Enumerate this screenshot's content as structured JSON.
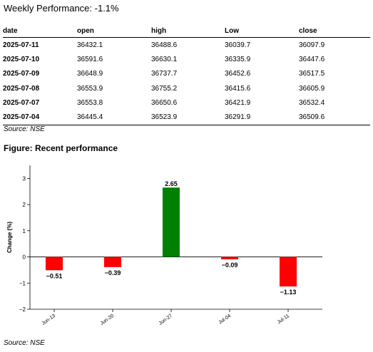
{
  "page": {
    "title": "Weekly Performance: -1.1%",
    "table_source": "Source: NSE",
    "figure_title": "Figure: Recent performance",
    "figure_source": "Source: NSE"
  },
  "table": {
    "headers": [
      "date",
      "open",
      "high",
      "Low",
      "close"
    ],
    "rows": [
      [
        "2025-07-11",
        "36432.1",
        "36488.6",
        "36039.7",
        "36097.9"
      ],
      [
        "2025-07-10",
        "36591.6",
        "36630.1",
        "36335.9",
        "36447.6"
      ],
      [
        "2025-07-09",
        "36648.9",
        "36737.7",
        "36452.6",
        "36517.5"
      ],
      [
        "2025-07-08",
        "36553.9",
        "36755.2",
        "36415.6",
        "36605.9"
      ],
      [
        "2025-07-07",
        "36553.8",
        "36650.6",
        "36421.9",
        "36532.4"
      ],
      [
        "2025-07-04",
        "36445.4",
        "36523.9",
        "36291.9",
        "36509.6"
      ]
    ]
  },
  "chart_data": {
    "type": "bar",
    "categories": [
      "Jun-13",
      "Jun-20",
      "Jun-27",
      "Jul-04",
      "Jul-11"
    ],
    "values": [
      -0.51,
      -0.39,
      2.65,
      -0.09,
      -1.13
    ],
    "value_labels": [
      "−0.51",
      "−0.39",
      "2.65",
      "−0.09",
      "−1.13"
    ],
    "ylabel": "Change (%)",
    "ylim": [
      -2,
      3.5
    ],
    "yticks": [
      -2,
      -1,
      0,
      1,
      2,
      3
    ],
    "ytick_labels": [
      "−2",
      "−1",
      "0",
      "1",
      "2",
      "3"
    ],
    "grid": false,
    "colors": {
      "positive": "#008000",
      "negative": "#ff0000"
    }
  }
}
